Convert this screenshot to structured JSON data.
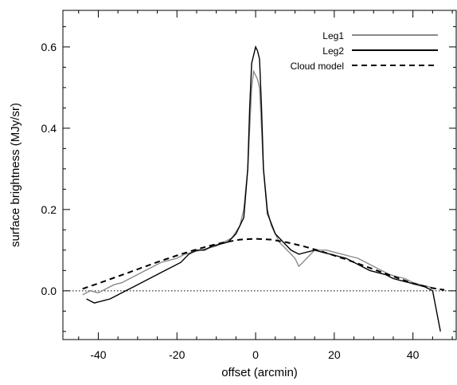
{
  "chart_data": {
    "type": "line",
    "title": "",
    "xlabel": "offset (arcmin)",
    "ylabel": "surface brightness (MJy/sr)",
    "xlim": [
      -49,
      51
    ],
    "ylim": [
      -0.12,
      0.69
    ],
    "x_ticks": [
      -40,
      -20,
      0,
      20,
      40
    ],
    "y_ticks": [
      0.0,
      0.2,
      0.4,
      0.6
    ],
    "x_tick_labels": [
      "-40",
      "-20",
      "0",
      "20",
      "40"
    ],
    "y_tick_labels": [
      "0.0",
      "0.2",
      "0.4",
      "0.6"
    ],
    "grid": false,
    "legend_position": "top-right",
    "zero_line": true,
    "series": [
      {
        "name": "Leg1",
        "color": "#8a8a8a",
        "style": "solid",
        "x": [
          -44,
          -42,
          -40,
          -38,
          -36,
          -34,
          -32,
          -30,
          -28,
          -26,
          -24,
          -22,
          -20,
          -18,
          -16,
          -14,
          -12,
          -10,
          -8,
          -6,
          -4,
          -3,
          -2,
          -1.5,
          -1,
          -0.5,
          0,
          0.5,
          1,
          1.5,
          2,
          3,
          4,
          6,
          8,
          10,
          11,
          15,
          18,
          20,
          22,
          24,
          26,
          28,
          30,
          32,
          34,
          36,
          38,
          40,
          42,
          44,
          46
        ],
        "y": [
          -0.01,
          0.0,
          -0.005,
          0.005,
          0.015,
          0.02,
          0.03,
          0.04,
          0.05,
          0.06,
          0.07,
          0.075,
          0.08,
          0.09,
          0.095,
          0.1,
          0.105,
          0.11,
          0.12,
          0.13,
          0.16,
          0.2,
          0.3,
          0.4,
          0.5,
          0.54,
          0.53,
          0.52,
          0.5,
          0.4,
          0.3,
          0.2,
          0.16,
          0.12,
          0.1,
          0.08,
          0.06,
          0.1,
          0.1,
          0.095,
          0.09,
          0.085,
          0.08,
          0.07,
          0.06,
          0.05,
          0.04,
          0.035,
          0.03,
          0.02,
          0.015,
          0.01,
          0.005
        ]
      },
      {
        "name": "Leg2",
        "color": "#000000",
        "style": "solid",
        "x": [
          -43,
          -41,
          -39,
          -37,
          -35,
          -33,
          -31,
          -29,
          -27,
          -25,
          -23,
          -21,
          -19,
          -17,
          -15,
          -13,
          -11,
          -9,
          -7,
          -5,
          -3,
          -2,
          -1.5,
          -1,
          -0.5,
          0,
          0.5,
          1,
          1.5,
          2,
          3,
          5,
          7,
          9,
          11,
          15,
          17,
          19,
          21,
          23,
          25,
          27,
          29,
          31,
          33,
          35,
          37,
          39,
          41,
          43,
          45,
          47
        ],
        "y": [
          -0.02,
          -0.03,
          -0.025,
          -0.02,
          -0.01,
          0.0,
          0.01,
          0.02,
          0.03,
          0.04,
          0.05,
          0.06,
          0.07,
          0.09,
          0.1,
          0.1,
          0.11,
          0.115,
          0.12,
          0.14,
          0.18,
          0.3,
          0.45,
          0.56,
          0.58,
          0.6,
          0.59,
          0.57,
          0.45,
          0.3,
          0.19,
          0.14,
          0.12,
          0.1,
          0.09,
          0.1,
          0.095,
          0.09,
          0.085,
          0.08,
          0.07,
          0.06,
          0.05,
          0.045,
          0.04,
          0.03,
          0.025,
          0.02,
          0.015,
          0.01,
          0.0,
          -0.1
        ]
      },
      {
        "name": "Cloud model",
        "color": "#000000",
        "style": "dashed",
        "x": [
          -44,
          -40,
          -36,
          -32,
          -28,
          -24,
          -20,
          -16,
          -12,
          -8,
          -4,
          0,
          4,
          8,
          12,
          16,
          20,
          24,
          28,
          32,
          36,
          40,
          44,
          48
        ],
        "y": [
          0.005,
          0.018,
          0.032,
          0.046,
          0.06,
          0.074,
          0.087,
          0.099,
          0.11,
          0.119,
          0.126,
          0.128,
          0.126,
          0.119,
          0.11,
          0.099,
          0.087,
          0.074,
          0.06,
          0.046,
          0.032,
          0.018,
          0.008,
          0.002
        ]
      }
    ]
  }
}
